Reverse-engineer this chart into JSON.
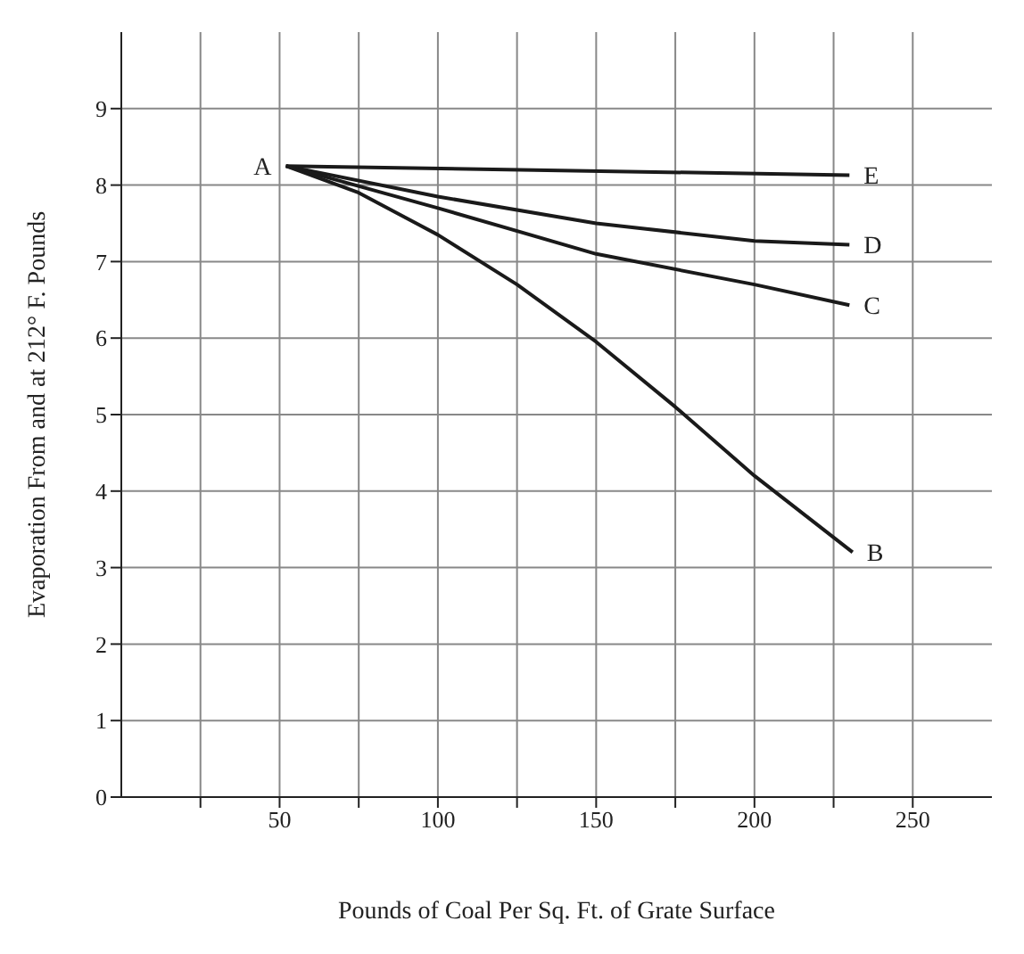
{
  "chart_data": {
    "type": "line",
    "xlabel": "Pounds of Coal Per Sq. Ft. of Grate Surface",
    "ylabel": "Evaporation From and at 212° F. Pounds",
    "xlim": [
      0,
      275
    ],
    "xticks": [
      {
        "value": 25,
        "label": null
      },
      50,
      {
        "value": 75,
        "label": null
      },
      100,
      {
        "value": 125,
        "label": null
      },
      150,
      {
        "value": 175,
        "label": null
      },
      200,
      {
        "value": 225,
        "label": null
      },
      250
    ],
    "ylim": [
      0,
      10
    ],
    "yticks": [
      0,
      1,
      2,
      3,
      4,
      5,
      6,
      7,
      8,
      9
    ],
    "grid": true,
    "marker": "none",
    "line_style": "solid",
    "series": [
      {
        "color": "#1a1a1a",
        "x": [
          52,
          230
        ],
        "values": [
          8.25,
          8.13
        ]
      },
      {
        "color": "#1a1a1a",
        "x": [
          52,
          100,
          150,
          200,
          230
        ],
        "values": [
          8.25,
          7.85,
          7.5,
          7.27,
          7.22
        ]
      },
      {
        "color": "#1a1a1a",
        "x": [
          52,
          100,
          150,
          200,
          230
        ],
        "values": [
          8.25,
          7.7,
          7.1,
          6.7,
          6.43
        ]
      },
      {
        "color": "#1a1a1a",
        "x": [
          52,
          75,
          100,
          125,
          150,
          175,
          200,
          231
        ],
        "values": [
          8.25,
          7.9,
          7.35,
          6.7,
          5.95,
          5.1,
          4.2,
          3.2
        ]
      }
    ],
    "annotations": [
      {
        "text": "A",
        "x": 52,
        "y": 8.25
      },
      {
        "text": "E",
        "x": 230,
        "y": 8.13
      },
      {
        "text": "D",
        "x": 230,
        "y": 7.22
      },
      {
        "text": "C",
        "x": 230,
        "y": 6.43
      },
      {
        "text": "B",
        "x": 231,
        "y": 3.2
      }
    ]
  }
}
